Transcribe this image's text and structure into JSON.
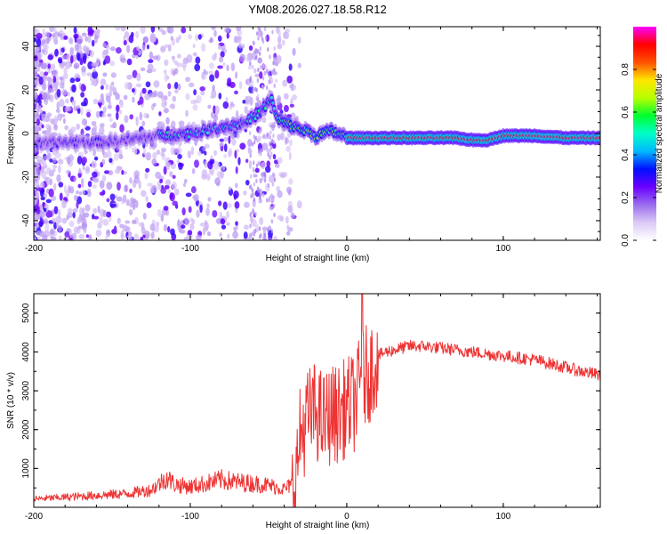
{
  "figure_title": "YM08.2026.027.18.58.R12",
  "colors": {
    "snr_line": "#ee3333",
    "axis": "#000000"
  },
  "colormap_stops": [
    "#ffffff",
    "#dcc9f6",
    "#9a6cee",
    "#6a00ff",
    "#0010ff",
    "#00b8ff",
    "#00ffc8",
    "#00ff30",
    "#b8ff00",
    "#ffe600",
    "#ff5000",
    "#ff0000",
    "#ff00ff"
  ],
  "chart_data": [
    {
      "type": "heatmap",
      "name": "spectrogram",
      "title": "",
      "xlabel": "Height of straight line (km)",
      "ylabel": "Frequency (Hz)",
      "xlim": [
        -200,
        162
      ],
      "ylim": [
        -49,
        49
      ],
      "xticks": [
        -200,
        -100,
        0,
        100
      ],
      "xtick_labels": [
        "-200",
        "-100",
        "0",
        "100"
      ],
      "yticks": [
        -40,
        -20,
        0,
        20,
        40
      ],
      "ytick_labels": [
        "-40",
        "-20",
        "0",
        "20",
        "40"
      ],
      "ridge": {
        "description": "Peak frequency track vs height",
        "x": [
          -200,
          -180,
          -160,
          -140,
          -120,
          -100,
          -80,
          -65,
          -55,
          -48,
          -45,
          -40,
          -30,
          -25,
          -20,
          -15,
          -10,
          -5,
          0,
          10,
          30,
          60,
          70,
          80,
          85,
          90,
          100,
          120,
          140,
          162
        ],
        "y": [
          -5,
          -4,
          -4,
          -3,
          -1,
          0,
          3,
          5,
          10,
          16,
          7,
          5,
          2,
          1,
          -1,
          0,
          1,
          0,
          -2,
          -2,
          -2,
          -2,
          -2,
          -3,
          -3,
          -3,
          -1,
          -1,
          -2,
          -2
        ]
      },
      "colorbar": {
        "label": "Normalized spectral amplitude",
        "range": [
          0.0,
          1.0
        ],
        "ticks": [
          0.0,
          0.2,
          0.4,
          0.6,
          0.8
        ],
        "tick_labels": [
          "0.0",
          "0.2",
          "0.4",
          "0.6",
          "0.8"
        ]
      }
    },
    {
      "type": "line",
      "name": "snr",
      "title": "",
      "xlabel": "Height of straight line (km)",
      "ylabel": "SNR (10 * v/v)",
      "xlim": [
        -200,
        162
      ],
      "ylim": [
        0,
        5500
      ],
      "xticks": [
        -200,
        -100,
        0,
        100
      ],
      "xtick_labels": [
        "-200",
        "-100",
        "0",
        "100"
      ],
      "yticks": [
        1000,
        2000,
        3000,
        4000,
        5000
      ],
      "ytick_labels": [
        "1000",
        "2000",
        "3000",
        "4000",
        "5000"
      ],
      "series": [
        {
          "name": "SNR",
          "x": [
            -200,
            -180,
            -160,
            -140,
            -125,
            -115,
            -110,
            -100,
            -90,
            -80,
            -70,
            -60,
            -50,
            -40,
            -35,
            -32,
            -30,
            -25,
            -20,
            -15,
            -10,
            -5,
            0,
            5,
            10,
            15,
            20,
            25,
            30,
            40,
            50,
            60,
            80,
            100,
            110,
            120,
            130,
            140,
            150,
            162
          ],
          "y": [
            180,
            220,
            260,
            300,
            380,
            650,
            500,
            450,
            520,
            600,
            550,
            520,
            480,
            400,
            500,
            900,
            1800,
            2300,
            2500,
            2200,
            2400,
            2400,
            2600,
            2700,
            3300,
            3500,
            3900,
            4000,
            4050,
            4150,
            4150,
            4100,
            4000,
            3900,
            3850,
            3800,
            3700,
            3600,
            3500,
            3400
          ]
        }
      ]
    }
  ]
}
